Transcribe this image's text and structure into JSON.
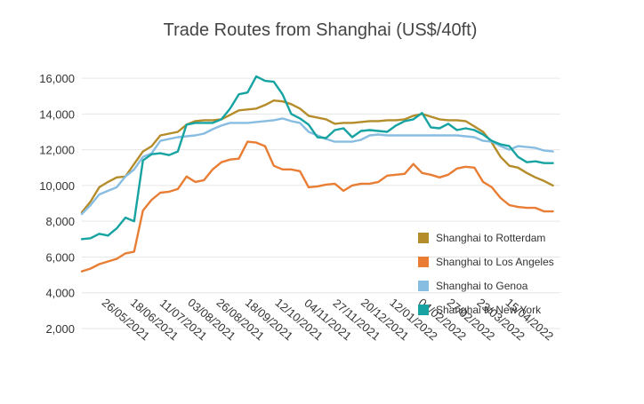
{
  "chart_data": {
    "type": "line",
    "title": "Trade Routes from Shanghai (US$/40ft)",
    "xlabel": "",
    "ylabel": "",
    "ylim": [
      2000,
      16500
    ],
    "y_ticks": [
      2000,
      4000,
      6000,
      8000,
      10000,
      12000,
      14000,
      16000
    ],
    "y_tick_labels": [
      "2,000",
      "4,000",
      "6,000",
      "8,000",
      "10,000",
      "12,000",
      "14,000",
      "16,000"
    ],
    "x_range": [
      "2021-04-15",
      "2022-05-04"
    ],
    "x_ticks": [
      "2021-05-26",
      "2021-06-18",
      "2021-07-11",
      "2021-08-03",
      "2021-08-26",
      "2021-09-18",
      "2021-10-12",
      "2021-11-04",
      "2021-11-27",
      "2021-12-20",
      "2022-01-12",
      "2022-02-04",
      "2022-02-27",
      "2022-03-23",
      "2022-04-15"
    ],
    "x_tick_labels": [
      "26/05/2021",
      "18/06/2021",
      "11/07/2021",
      "03/08/2021",
      "26/08/2021",
      "18/09/2021",
      "12/10/2021",
      "04/11/2021",
      "27/11/2021",
      "20/12/2021",
      "12/01/2022",
      "04/02/2022",
      "27/02/2022",
      "23/03/2022",
      "15/04/2022"
    ],
    "grid": "horizontal",
    "legend_position": "bottom-right",
    "x": [
      "2021-04-15",
      "2021-04-22",
      "2021-04-29",
      "2021-05-06",
      "2021-05-13",
      "2021-05-20",
      "2021-05-27",
      "2021-06-03",
      "2021-06-10",
      "2021-06-17",
      "2021-06-24",
      "2021-07-01",
      "2021-07-08",
      "2021-07-15",
      "2021-07-22",
      "2021-07-29",
      "2021-08-05",
      "2021-08-12",
      "2021-08-19",
      "2021-08-26",
      "2021-09-02",
      "2021-09-09",
      "2021-09-16",
      "2021-09-23",
      "2021-09-30",
      "2021-10-07",
      "2021-10-14",
      "2021-10-21",
      "2021-10-28",
      "2021-11-04",
      "2021-11-11",
      "2021-11-18",
      "2021-11-25",
      "2021-12-02",
      "2021-12-09",
      "2021-12-16",
      "2021-12-23",
      "2021-12-30",
      "2022-01-06",
      "2022-01-13",
      "2022-01-20",
      "2022-01-27",
      "2022-02-03",
      "2022-02-10",
      "2022-02-17",
      "2022-02-24",
      "2022-03-03",
      "2022-03-10",
      "2022-03-17",
      "2022-03-24",
      "2022-03-31",
      "2022-04-07",
      "2022-04-14",
      "2022-04-21",
      "2022-04-28"
    ],
    "series": [
      {
        "name": "Shanghai to Rotterdam",
        "color": "#b58c2a",
        "values": [
          8500,
          9100,
          9900,
          10200,
          10450,
          10500,
          11200,
          11900,
          12200,
          12800,
          12900,
          13000,
          13400,
          13600,
          13650,
          13650,
          13700,
          13950,
          14200,
          14250,
          14300,
          14500,
          14750,
          14700,
          14550,
          14300,
          13900,
          13800,
          13700,
          13450,
          13500,
          13500,
          13550,
          13600,
          13600,
          13650,
          13650,
          13700,
          13900,
          14000,
          13850,
          13700,
          13650,
          13650,
          13600,
          13300,
          13000,
          12400,
          11600,
          11100,
          11000,
          10700,
          10450,
          10250,
          10000
        ]
      },
      {
        "name": "Shanghai to Los Angeles",
        "color": "#e87d33",
        "values": [
          5200,
          5350,
          5600,
          5750,
          5900,
          6200,
          6300,
          8600,
          9200,
          9600,
          9650,
          9800,
          10500,
          10200,
          10300,
          10900,
          11300,
          11450,
          11500,
          12450,
          12400,
          12200,
          11100,
          10900,
          10900,
          10800,
          9900,
          9950,
          10050,
          10100,
          9700,
          10000,
          10100,
          10100,
          10200,
          10550,
          10600,
          10650,
          11200,
          10700,
          10600,
          10450,
          10600,
          10950,
          11050,
          11000,
          10200,
          9900,
          9300,
          8900,
          8800,
          8750,
          8750,
          8550,
          8550
        ]
      },
      {
        "name": "Shanghai to Genoa",
        "color": "#88bde2",
        "values": [
          8400,
          8900,
          9500,
          9700,
          9900,
          10500,
          10900,
          11600,
          11800,
          12500,
          12600,
          12700,
          12750,
          12800,
          12900,
          13150,
          13350,
          13500,
          13500,
          13500,
          13550,
          13600,
          13650,
          13750,
          13600,
          13500,
          13000,
          12800,
          12600,
          12450,
          12450,
          12450,
          12550,
          12800,
          12850,
          12800,
          12800,
          12800,
          12800,
          12800,
          12800,
          12800,
          12800,
          12800,
          12750,
          12700,
          12500,
          12450,
          12200,
          12000,
          12200,
          12150,
          12100,
          11950,
          11900
        ]
      },
      {
        "name": "Shanghai to New York",
        "color": "#16a3a1",
        "values": [
          7000,
          7050,
          7300,
          7200,
          7600,
          8200,
          8000,
          11400,
          11750,
          11800,
          11700,
          11900,
          13400,
          13500,
          13500,
          13500,
          13700,
          14300,
          15100,
          15200,
          16100,
          15850,
          15800,
          15100,
          14000,
          13750,
          13400,
          12700,
          12650,
          13100,
          13200,
          12700,
          13050,
          13100,
          13050,
          13000,
          13350,
          13600,
          13700,
          14050,
          13250,
          13200,
          13450,
          13100,
          13200,
          13100,
          12850,
          12500,
          12300,
          12200,
          11600,
          11300,
          11350,
          11250,
          11250
        ]
      }
    ]
  }
}
